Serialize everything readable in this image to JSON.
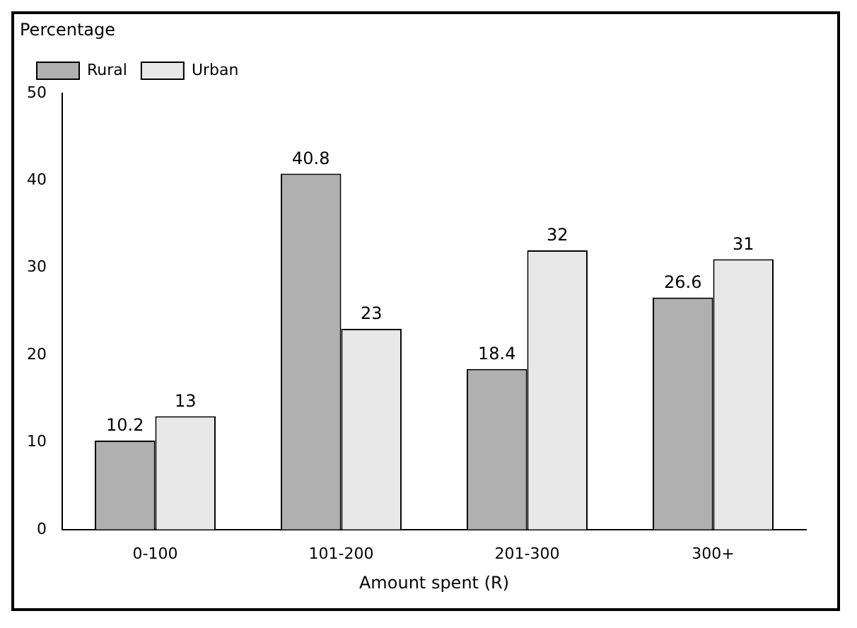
{
  "chart_data": {
    "type": "bar",
    "ylabel": "Percentage",
    "xlabel": "Amount spent (R)",
    "categories": [
      "0-100",
      "101-200",
      "201-300",
      "300+"
    ],
    "series": [
      {
        "name": "Rural",
        "color": "#b0b0b0",
        "values": [
          10.2,
          40.8,
          18.4,
          26.6
        ]
      },
      {
        "name": "Urban",
        "color": "#e8e8e8",
        "values": [
          13,
          23,
          32,
          31
        ]
      }
    ],
    "ylim": [
      0,
      50
    ],
    "yticks": [
      0,
      10,
      20,
      30,
      40,
      50
    ],
    "grid": false,
    "legend": "top left",
    "data_labels": true
  }
}
